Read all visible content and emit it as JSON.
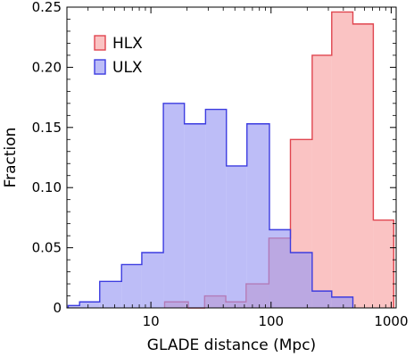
{
  "chart_data": {
    "type": "histogram",
    "x_scale": "log",
    "xlim": [
      2,
      1100
    ],
    "ylim": [
      0,
      0.25
    ],
    "xlabel": "GLADE distance (Mpc)",
    "ylabel": "Fraction",
    "x_ticks": [
      10,
      100,
      1000
    ],
    "x_tick_labels": [
      "10",
      "100",
      "1000"
    ],
    "y_ticks": [
      0,
      0.05,
      0.1,
      0.15,
      0.2,
      0.25
    ],
    "y_tick_labels": [
      "0",
      "0.05",
      "0.10",
      "0.15",
      "0.20",
      "0.25"
    ],
    "legend_position": "top-left",
    "grid": false,
    "series": [
      {
        "name": "HLX",
        "color": "#f7a3a3",
        "edge": "#e0454f",
        "bins": [
          {
            "x0": 13.0,
            "x1": 20.5,
            "y": 0.005
          },
          {
            "x0": 20.5,
            "x1": 28.0,
            "y": 0.0
          },
          {
            "x0": 28.0,
            "x1": 42.0,
            "y": 0.01
          },
          {
            "x0": 42.0,
            "x1": 62.0,
            "y": 0.005
          },
          {
            "x0": 62.0,
            "x1": 96.0,
            "y": 0.02
          },
          {
            "x0": 96.0,
            "x1": 145.0,
            "y": 0.058
          },
          {
            "x0": 145.0,
            "x1": 220.0,
            "y": 0.14
          },
          {
            "x0": 220.0,
            "x1": 320.0,
            "y": 0.21
          },
          {
            "x0": 320.0,
            "x1": 480.0,
            "y": 0.246
          },
          {
            "x0": 480.0,
            "x1": 710.0,
            "y": 0.236
          },
          {
            "x0": 710.0,
            "x1": 1050.0,
            "y": 0.073
          }
        ]
      },
      {
        "name": "ULX",
        "color": "#9a9af2",
        "edge": "#3c3ce0",
        "bins": [
          {
            "x0": 2.05,
            "x1": 2.55,
            "y": 0.002
          },
          {
            "x0": 2.55,
            "x1": 3.75,
            "y": 0.005
          },
          {
            "x0": 3.75,
            "x1": 5.7,
            "y": 0.022
          },
          {
            "x0": 5.7,
            "x1": 8.4,
            "y": 0.036
          },
          {
            "x0": 8.4,
            "x1": 12.7,
            "y": 0.046
          },
          {
            "x0": 12.7,
            "x1": 19.0,
            "y": 0.17
          },
          {
            "x0": 19.0,
            "x1": 28.5,
            "y": 0.153
          },
          {
            "x0": 28.5,
            "x1": 42.5,
            "y": 0.165
          },
          {
            "x0": 42.5,
            "x1": 63.0,
            "y": 0.118
          },
          {
            "x0": 63.0,
            "x1": 97.0,
            "y": 0.153
          },
          {
            "x0": 97.0,
            "x1": 145.0,
            "y": 0.065
          },
          {
            "x0": 145.0,
            "x1": 220.0,
            "y": 0.046
          },
          {
            "x0": 220.0,
            "x1": 320.0,
            "y": 0.014
          },
          {
            "x0": 320.0,
            "x1": 480.0,
            "y": 0.009
          }
        ]
      }
    ]
  }
}
